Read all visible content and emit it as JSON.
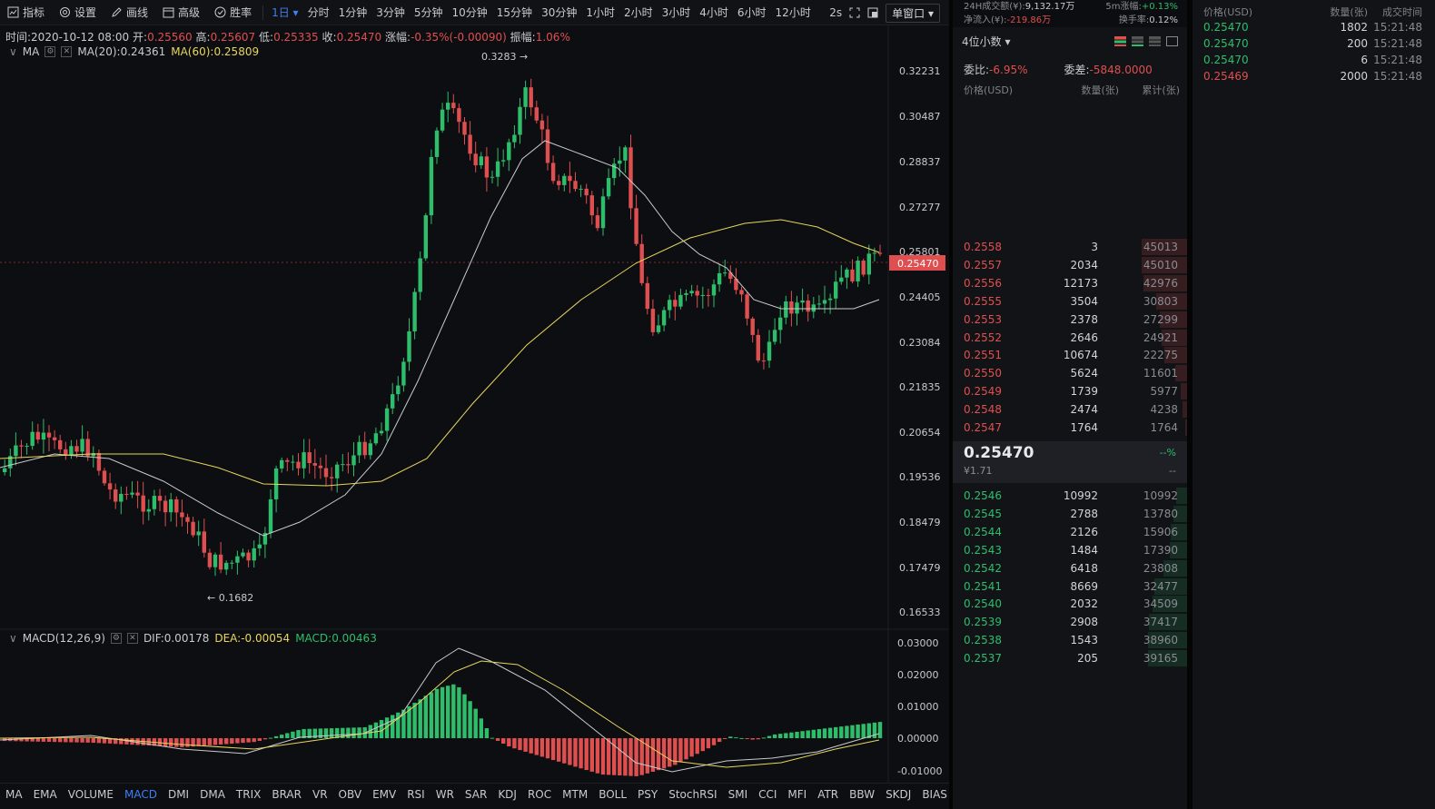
{
  "toolbar": {
    "tools": [
      {
        "name": "indicator",
        "label": "指标"
      },
      {
        "name": "settings",
        "label": "设置"
      },
      {
        "name": "draw",
        "label": "画线"
      },
      {
        "name": "advanced",
        "label": "高级"
      },
      {
        "name": "winrate",
        "label": "胜率"
      }
    ],
    "active_interval": "1日",
    "periods": [
      "分时",
      "1分钟",
      "3分钟",
      "5分钟",
      "10分钟",
      "15分钟",
      "30分钟",
      "1小时",
      "2小时",
      "3小时",
      "4小时",
      "6小时",
      "12小时"
    ],
    "refresh": "2s",
    "window_mode": "单窗口"
  },
  "ohlc": {
    "time_label": "时间:",
    "time": "2020-10-12 08:00",
    "open_label": "开:",
    "open": "0.25560",
    "high_label": "高:",
    "high": "0.25607",
    "low_label": "低:",
    "low": "0.25335",
    "close_label": "收:",
    "close": "0.25470",
    "change_label": "涨幅:",
    "change": "-0.35%(-0.00090)",
    "amp_label": "振幅:",
    "amp": "1.06%"
  },
  "ma_legend": {
    "name": "MA",
    "ma20": "MA(20):0.24361",
    "ma60": "MA(60):0.25809"
  },
  "macd_legend": {
    "name": "MACD(12,26,9)",
    "dif": "DIF:0.00178",
    "dea": "DEA:-0.00054",
    "macd": "MACD:0.00463"
  },
  "price_axis": [
    "0.32231",
    "0.30487",
    "0.28837",
    "0.27277",
    "0.25801",
    "0.24405",
    "0.23084",
    "0.21835",
    "0.20654",
    "0.19536",
    "0.18479",
    "0.17479",
    "0.16533"
  ],
  "current_price_tag": "0.25470",
  "macd_axis": [
    "0.03000",
    "0.02000",
    "0.01000",
    "0.00000",
    "-0.01000"
  ],
  "annotations": {
    "high": "0.3283 →",
    "low": "← 0.1682"
  },
  "indicators": [
    "MA",
    "EMA",
    "VOLUME",
    "MACD",
    "DMI",
    "DMA",
    "TRIX",
    "BRAR",
    "VR",
    "OBV",
    "EMV",
    "RSI",
    "WR",
    "SAR",
    "KDJ",
    "ROC",
    "MTM",
    "BOLL",
    "PSY",
    "StochRSI",
    "SMI",
    "CCI",
    "MFI",
    "ATR",
    "BBW",
    "SKDJ",
    "BIAS"
  ],
  "active_indicator": "MACD",
  "book": {
    "stats": {
      "vol_label": "24H成交额(¥):",
      "vol": "9,132.17万",
      "rise_label": "5m涨幅:",
      "rise": "+0.13%",
      "inflow_label": "净流入(¥):",
      "inflow": "-219.86万",
      "turnover_label": "换手率:",
      "turnover": "0.12%"
    },
    "decimals": "4位小数",
    "ratio_label": "委比:",
    "ratio": "-6.95%",
    "diff_label": "委差:",
    "diff": "-5848.0000",
    "col_price": "价格(USD)",
    "col_qty": "数量(张)",
    "col_cum": "累计(张)",
    "asks": [
      {
        "p": "0.2558",
        "q": "3",
        "c": "45013"
      },
      {
        "p": "0.2557",
        "q": "2034",
        "c": "45010"
      },
      {
        "p": "0.2556",
        "q": "12173",
        "c": "42976"
      },
      {
        "p": "0.2555",
        "q": "3504",
        "c": "30803"
      },
      {
        "p": "0.2553",
        "q": "2378",
        "c": "27299"
      },
      {
        "p": "0.2552",
        "q": "2646",
        "c": "24921"
      },
      {
        "p": "0.2551",
        "q": "10674",
        "c": "22275"
      },
      {
        "p": "0.2550",
        "q": "5624",
        "c": "11601"
      },
      {
        "p": "0.2549",
        "q": "1739",
        "c": "5977"
      },
      {
        "p": "0.2548",
        "q": "2474",
        "c": "4238"
      },
      {
        "p": "0.2547",
        "q": "1764",
        "c": "1764"
      }
    ],
    "mid_price": "0.25470",
    "mid_rmb": "¥1.71",
    "mid_pct": "--%",
    "mid_dash": "--",
    "bids": [
      {
        "p": "0.2546",
        "q": "10992",
        "c": "10992"
      },
      {
        "p": "0.2545",
        "q": "2788",
        "c": "13780"
      },
      {
        "p": "0.2544",
        "q": "2126",
        "c": "15906"
      },
      {
        "p": "0.2543",
        "q": "1484",
        "c": "17390"
      },
      {
        "p": "0.2542",
        "q": "6418",
        "c": "23808"
      },
      {
        "p": "0.2541",
        "q": "8669",
        "c": "32477"
      },
      {
        "p": "0.2540",
        "q": "2032",
        "c": "34509"
      },
      {
        "p": "0.2539",
        "q": "2908",
        "c": "37417"
      },
      {
        "p": "0.2538",
        "q": "1543",
        "c": "38960"
      },
      {
        "p": "0.2537",
        "q": "205",
        "c": "39165"
      }
    ]
  },
  "trades": {
    "col_price": "价格(USD)",
    "col_qty": "数量(张)",
    "col_time": "成交时间",
    "rows": [
      {
        "p": "0.25470",
        "q": "1802",
        "t": "15:21:48",
        "side": "buy"
      },
      {
        "p": "0.25470",
        "q": "200",
        "t": "15:21:48",
        "side": "buy"
      },
      {
        "p": "0.25470",
        "q": "6",
        "t": "15:21:48",
        "side": "buy"
      },
      {
        "p": "0.25469",
        "q": "2000",
        "t": "15:21:48",
        "side": "sell"
      }
    ]
  },
  "colors": {
    "up": "#2ebd6b",
    "down": "#e04f4f",
    "ma20": "#c9cacd",
    "ma60": "#e8d65c",
    "accent": "#3f7ef5"
  }
}
